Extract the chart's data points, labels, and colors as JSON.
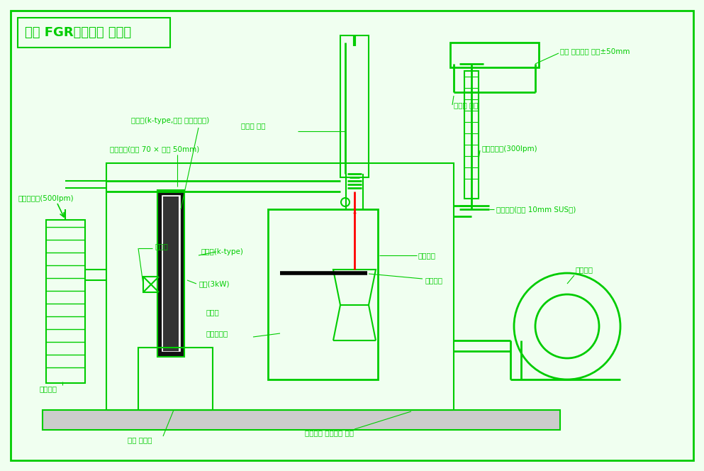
{
  "title": "고온 FGR실험장치 구성도",
  "bg_color": "#f0fff0",
  "border_color": "#00cc00",
  "line_color": "#00cc00",
  "text_color": "#00cc00",
  "red_color": "#ff0000",
  "black_color": "#000000",
  "dark_green": "#008800",
  "labels": {
    "title": "고온 FGR실험장치 구성도",
    "air_flow_500": "공기유량계(500lpm)",
    "air_pipe": "공기배관(가로 70 × 세로 50mm)",
    "thermocouple_k": "열전대(k-type,히터 온도조절용)",
    "water_switch": "워터치 프팅",
    "ball_valve": "볼밸브",
    "thermocouple_k2": "열전대(k-type)",
    "heater": "히터(3kW)",
    "mixing_box": "혼합통",
    "nozzle_out": "바플노즐부",
    "air_intake": "공기흡입",
    "heater_ctrl": "히터 제어반",
    "nozzle_dist": "노즐 이동거리 상하±50mm",
    "urethane_hose": "우레탄 호스",
    "air_flow_300": "공기유량계(300lpm)",
    "air_nozzle": "공기노즐(나경 10mm SUS관)",
    "venturi": "벤튜리부",
    "mixing_plate": "혼합원판",
    "ring_blower": "링블로워",
    "blower_connect": "링블로워 흡입부에 연결"
  }
}
